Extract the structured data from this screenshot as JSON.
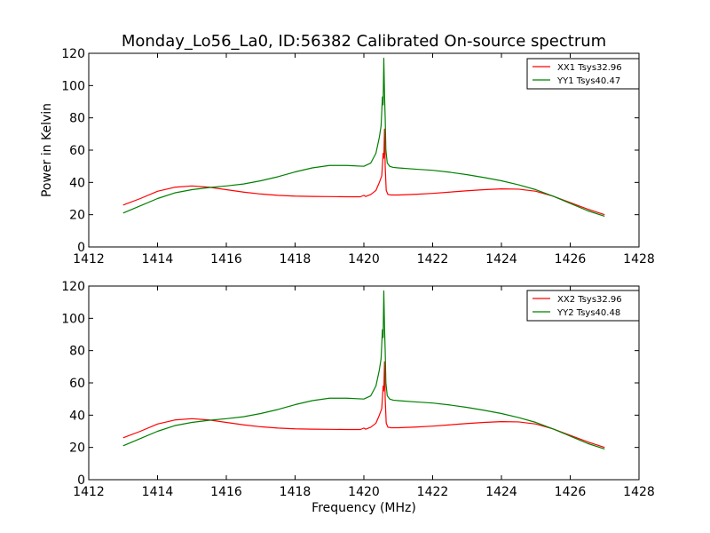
{
  "figure": {
    "title": "Monday_Lo56_La0, ID:56382 Calibrated On-source spectrum"
  },
  "colors": {
    "xx": "#ff0000",
    "yy": "#008000"
  },
  "chart_data": [
    {
      "type": "line",
      "title": "Monday_Lo56_La0, ID:56382 Calibrated On-source spectrum",
      "xlabel": "",
      "ylabel": "Power in Kelvin",
      "xlim": [
        1412,
        1428
      ],
      "ylim": [
        0,
        120
      ],
      "xticks": [
        "1412",
        "1414",
        "1416",
        "1418",
        "1420",
        "1422",
        "1424",
        "1426",
        "1428"
      ],
      "yticks": [
        "0",
        "20",
        "40",
        "60",
        "80",
        "100",
        "120"
      ],
      "grid": false,
      "legend": "top-right",
      "series": [
        {
          "name": "XX1 Tsys32.96",
          "color": "#ff0000",
          "x": [
            1413.0,
            1413.5,
            1414.0,
            1414.5,
            1415.0,
            1415.5,
            1416.0,
            1416.5,
            1417.0,
            1417.5,
            1418.0,
            1418.5,
            1419.0,
            1419.5,
            1419.9,
            1420.0,
            1420.05,
            1420.2,
            1420.35,
            1420.45,
            1420.52,
            1420.56,
            1420.58,
            1420.6,
            1420.62,
            1420.65,
            1420.7,
            1420.8,
            1421.0,
            1421.5,
            1422.0,
            1422.5,
            1423.0,
            1423.5,
            1424.0,
            1424.5,
            1425.0,
            1425.5,
            1426.0,
            1426.5,
            1427.0
          ],
          "y": [
            26,
            30,
            34.5,
            37,
            37.8,
            37,
            35.5,
            34,
            32.8,
            32,
            31.5,
            31.3,
            31.2,
            31.1,
            31.1,
            32,
            31.3,
            32.5,
            35,
            40,
            44,
            58,
            55,
            73,
            50,
            35,
            32.5,
            32.2,
            32.2,
            32.6,
            33.2,
            34,
            34.8,
            35.5,
            36,
            35.8,
            34.5,
            31.5,
            27.5,
            23.5,
            20
          ]
        },
        {
          "name": "YY1 Tsys40.47",
          "color": "#008000",
          "x": [
            1413.0,
            1413.5,
            1414.0,
            1414.5,
            1415.0,
            1415.5,
            1416.0,
            1416.5,
            1417.0,
            1417.5,
            1418.0,
            1418.5,
            1419.0,
            1419.5,
            1420.0,
            1420.2,
            1420.35,
            1420.45,
            1420.5,
            1420.54,
            1420.56,
            1420.58,
            1420.6,
            1420.62,
            1420.64,
            1420.68,
            1420.75,
            1420.85,
            1421.0,
            1421.5,
            1422.0,
            1422.5,
            1423.0,
            1423.5,
            1424.0,
            1424.5,
            1425.0,
            1425.5,
            1426.0,
            1426.5,
            1427.0
          ],
          "y": [
            21,
            25.5,
            30,
            33.5,
            35.5,
            36.8,
            37.8,
            39,
            41,
            43.5,
            46.5,
            49,
            50.5,
            50.5,
            50,
            52,
            58,
            68,
            75,
            93,
            88,
            117,
            95,
            80,
            60,
            52,
            50,
            49.3,
            49,
            48.2,
            47.5,
            46.3,
            44.8,
            43,
            41,
            38.5,
            35.5,
            31.5,
            27,
            22.5,
            19
          ]
        }
      ]
    },
    {
      "type": "line",
      "title": "",
      "xlabel": "Frequency (MHz)",
      "ylabel": "",
      "xlim": [
        1412,
        1428
      ],
      "ylim": [
        0,
        120
      ],
      "xticks": [
        "1412",
        "1414",
        "1416",
        "1418",
        "1420",
        "1422",
        "1424",
        "1426",
        "1428"
      ],
      "yticks": [
        "0",
        "20",
        "40",
        "60",
        "80",
        "100",
        "120"
      ],
      "grid": false,
      "legend": "top-right",
      "series": [
        {
          "name": "XX2 Tsys32.96",
          "color": "#ff0000",
          "x": [
            1413.0,
            1413.5,
            1414.0,
            1414.5,
            1415.0,
            1415.5,
            1416.0,
            1416.5,
            1417.0,
            1417.5,
            1418.0,
            1418.5,
            1419.0,
            1419.5,
            1419.9,
            1420.0,
            1420.05,
            1420.2,
            1420.35,
            1420.45,
            1420.52,
            1420.56,
            1420.58,
            1420.6,
            1420.62,
            1420.65,
            1420.7,
            1420.8,
            1421.0,
            1421.5,
            1422.0,
            1422.5,
            1423.0,
            1423.5,
            1424.0,
            1424.5,
            1425.0,
            1425.5,
            1426.0,
            1426.5,
            1427.0
          ],
          "y": [
            26,
            30,
            34.5,
            37,
            37.8,
            37,
            35.5,
            34,
            32.8,
            32,
            31.5,
            31.3,
            31.2,
            31.1,
            31.1,
            32,
            31.3,
            32.5,
            35,
            40,
            44,
            58,
            55,
            73,
            50,
            35,
            32.5,
            32.2,
            32.2,
            32.6,
            33.2,
            34,
            34.8,
            35.5,
            36,
            35.8,
            34.5,
            31.5,
            27.5,
            23.5,
            20
          ]
        },
        {
          "name": "YY2 Tsys40.48",
          "color": "#008000",
          "x": [
            1413.0,
            1413.5,
            1414.0,
            1414.5,
            1415.0,
            1415.5,
            1416.0,
            1416.5,
            1417.0,
            1417.5,
            1418.0,
            1418.5,
            1419.0,
            1419.5,
            1420.0,
            1420.2,
            1420.35,
            1420.45,
            1420.5,
            1420.54,
            1420.56,
            1420.58,
            1420.6,
            1420.62,
            1420.64,
            1420.68,
            1420.75,
            1420.85,
            1421.0,
            1421.5,
            1422.0,
            1422.5,
            1423.0,
            1423.5,
            1424.0,
            1424.5,
            1425.0,
            1425.5,
            1426.0,
            1426.5,
            1427.0
          ],
          "y": [
            21,
            25.5,
            30,
            33.5,
            35.5,
            36.8,
            37.8,
            39,
            41,
            43.5,
            46.5,
            49,
            50.5,
            50.5,
            50,
            52,
            58,
            68,
            75,
            93,
            88,
            117,
            95,
            80,
            60,
            52,
            50,
            49.3,
            49,
            48.2,
            47.5,
            46.3,
            44.8,
            43,
            41,
            38.5,
            35.5,
            31.5,
            27,
            22.5,
            19
          ]
        }
      ]
    }
  ]
}
